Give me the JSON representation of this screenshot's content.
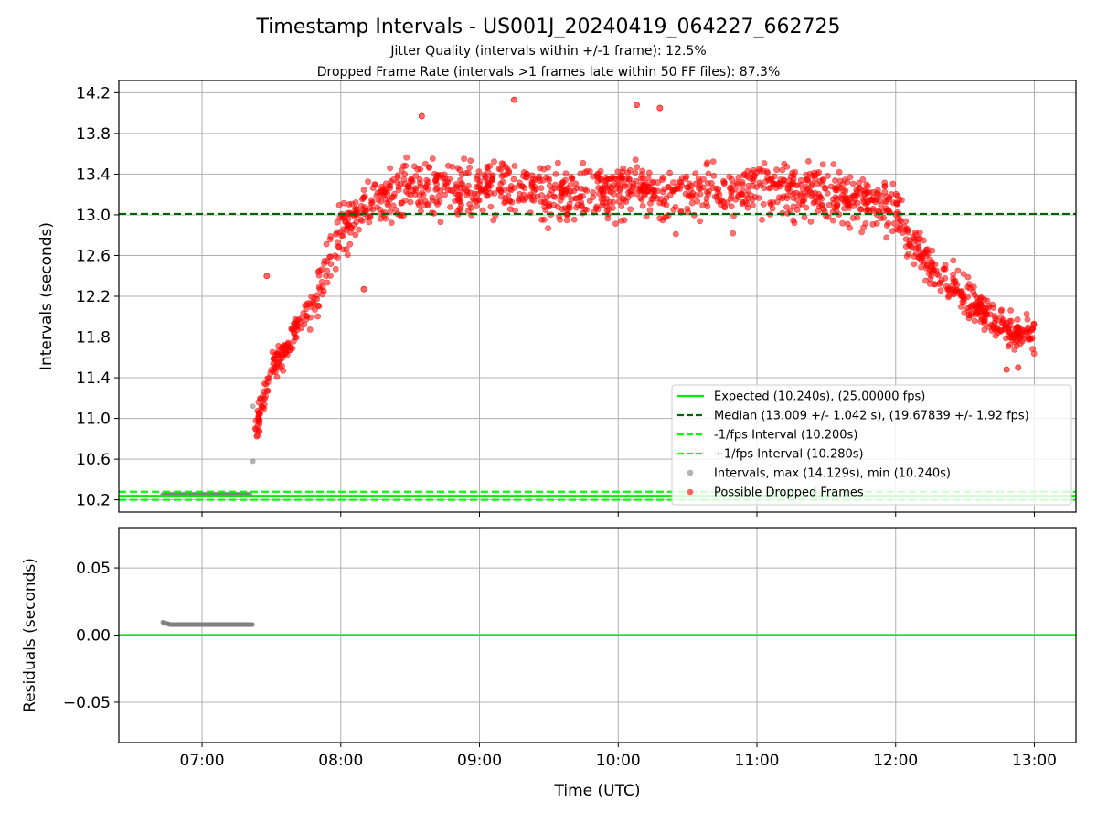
{
  "header": {
    "title": "Timestamp Intervals - US001J_20240419_064227_662725",
    "subtitle1": "Jitter Quality (intervals within +/-1 frame): 12.5%",
    "subtitle2": "Dropped Frame Rate (intervals >1 frames late within 50 FF files): 87.3%"
  },
  "colors": {
    "expected": "#00ee00",
    "median": "#006400",
    "fps_interval": "#00ff00",
    "normal_points": "#808080",
    "dropped_points": "#ff0000",
    "grid": "#b0b0b0"
  },
  "chart_data": [
    {
      "type": "scatter",
      "panel": "top",
      "xlabel": "",
      "ylabel": "Intervals (seconds)",
      "ylim": [
        10.08,
        14.32
      ],
      "y_ticks": [
        "10.2",
        "10.6",
        "11.0",
        "11.4",
        "11.8",
        "12.2",
        "12.6",
        "13.0",
        "13.4",
        "13.8",
        "14.2"
      ],
      "y_tick_values": [
        10.2,
        10.6,
        11.0,
        11.4,
        11.8,
        12.2,
        12.6,
        13.0,
        13.4,
        13.8,
        14.2
      ],
      "grid": true,
      "legend_position": "lower-right",
      "hlines": [
        {
          "name": "Expected (10.240s), (25.00000 fps)",
          "y": 10.24,
          "style": "solid"
        },
        {
          "name": "Median (13.009 +/- 1.042 s), (19.67839 +/- 1.92 fps)",
          "y": 13.009,
          "style": "dashed"
        },
        {
          "name": "-1/fps Interval (10.200s)",
          "y": 10.2,
          "style": "dashed"
        },
        {
          "name": "+1/fps Interval (10.280s)",
          "y": 10.28,
          "style": "dashed"
        }
      ],
      "series": [
        {
          "name": "Intervals, max (14.129s), min (10.240s)",
          "kind": "normal",
          "points": [
            [
              "06:43",
              10.25
            ],
            [
              "06:48",
              10.25
            ],
            [
              "06:53",
              10.25
            ],
            [
              "06:58",
              10.25
            ],
            [
              "07:03",
              10.25
            ],
            [
              "07:08",
              10.25
            ],
            [
              "07:13",
              10.25
            ],
            [
              "07:18",
              10.25
            ],
            [
              "07:21",
              10.25
            ],
            [
              "07:22",
              10.58
            ],
            [
              "07:22",
              11.12
            ]
          ]
        },
        {
          "name": "Possible Dropped Frames",
          "kind": "dropped",
          "envelope": [
            [
              "07:23",
              10.9
            ],
            [
              "07:30",
              11.45
            ],
            [
              "07:40",
              11.85
            ],
            [
              "07:50",
              12.2
            ],
            [
              "08:00",
              12.9
            ],
            [
              "08:10",
              13.1
            ],
            [
              "08:30",
              13.25
            ],
            [
              "09:00",
              13.3
            ],
            [
              "09:30",
              13.2
            ],
            [
              "10:00",
              13.25
            ],
            [
              "10:30",
              13.2
            ],
            [
              "11:00",
              13.25
            ],
            [
              "11:30",
              13.2
            ],
            [
              "12:00",
              13.1
            ],
            [
              "12:05",
              12.8
            ],
            [
              "12:15",
              12.5
            ],
            [
              "12:30",
              12.2
            ],
            [
              "12:40",
              12.0
            ],
            [
              "12:50",
              11.85
            ],
            [
              "13:00",
              11.85
            ]
          ],
          "notable_points": [
            [
              "09:15",
              14.13
            ],
            [
              "10:08",
              14.08
            ],
            [
              "10:18",
              14.05
            ],
            [
              "08:35",
              13.97
            ],
            [
              "07:28",
              12.4
            ],
            [
              "08:10",
              12.27
            ],
            [
              "12:48",
              11.48
            ],
            [
              "12:53",
              11.5
            ]
          ]
        }
      ]
    },
    {
      "type": "scatter",
      "panel": "bottom",
      "xlabel": "Time (UTC)",
      "ylabel": "Residuals (seconds)",
      "ylim": [
        -0.08,
        0.08
      ],
      "y_ticks": [
        "−0.05",
        "0.00",
        "0.05"
      ],
      "y_tick_values": [
        -0.05,
        0.0,
        0.05
      ],
      "x_ticks": [
        "07:00",
        "08:00",
        "09:00",
        "10:00",
        "11:00",
        "12:00",
        "13:00"
      ],
      "xlim": [
        "06:24",
        "13:18"
      ],
      "grid": true,
      "hlines": [
        {
          "name": "zero",
          "y": 0.0,
          "style": "solid"
        }
      ],
      "series": [
        {
          "name": "residuals",
          "kind": "normal",
          "points": [
            [
              "06:43",
              0.01
            ],
            [
              "06:45",
              0.009
            ],
            [
              "06:50",
              0.008
            ],
            [
              "07:00",
              0.008
            ],
            [
              "07:10",
              0.008
            ],
            [
              "07:20",
              0.008
            ],
            [
              "07:22",
              0.008
            ]
          ]
        }
      ]
    }
  ],
  "legend": [
    {
      "label": "Expected (10.240s), (25.00000 fps)",
      "marker": "line-solid",
      "color_key": "expected"
    },
    {
      "label": "Median (13.009 +/- 1.042 s), (19.67839 +/- 1.92 fps)",
      "marker": "line-dashed",
      "color_key": "median"
    },
    {
      "label": "-1/fps Interval (10.200s)",
      "marker": "line-dashed",
      "color_key": "fps_interval"
    },
    {
      "label": "+1/fps Interval (10.280s)",
      "marker": "line-dashed",
      "color_key": "fps_interval"
    },
    {
      "label": "Intervals, max (14.129s), min (10.240s)",
      "marker": "dot",
      "color_key": "normal_points"
    },
    {
      "label": "Possible Dropped Frames",
      "marker": "dot",
      "color_key": "dropped_points"
    }
  ]
}
